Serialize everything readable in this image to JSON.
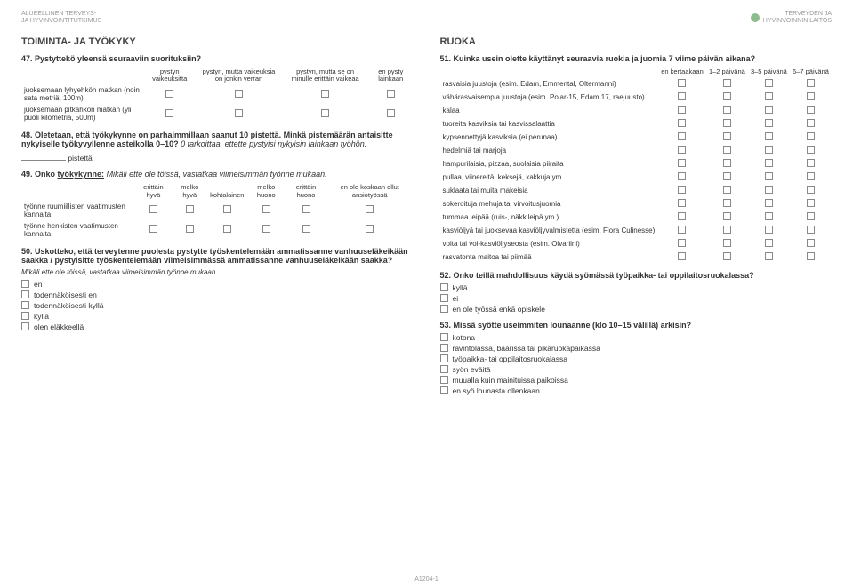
{
  "header": {
    "left_line1": "ALUEELLINEN TERVEYS-",
    "left_line2": "JA HYVINVOINTITUTKIMUS",
    "right_line1": "TERVEYDEN JA",
    "right_line2": "HYVINVOINNIN LAITOS"
  },
  "left": {
    "section_title": "TOIMINTA- JA TYÖKYKY",
    "q47": {
      "text": "47. Pystyttekö yleensä seuraaviin suorituksiin?",
      "cols": [
        "pystyn vaikeuksitta",
        "pystyn, mutta vaikeuksia on jonkin verran",
        "pystyn, mutta se on minulle erittäin vaikeaa",
        "en pysty lainkaan"
      ],
      "rows": [
        "juoksemaan lyhyehkön matkan (noin sata metriä, 100m)",
        "juoksemaan pitkähkön matkan (yli puoli kilometriä, 500m)"
      ]
    },
    "q48": {
      "text": "48. Oletetaan, että työkykynne on parhaimmillaan saanut 10 pistettä. Minkä pistemäärän antaisitte nykyiselle työkyvyllenne asteikolla 0–10?",
      "italic": "0 tarkoittaa, ettette pystyisi nykyisin lainkaan työhön.",
      "points_label": "pistettä"
    },
    "q49": {
      "text": "49. Onko ",
      "underline": "työkykynne:",
      "italic": "Mikäli ette ole töissä, vastatkaa viimeisimmän työnne mukaan.",
      "cols": [
        "erittäin hyvä",
        "melko hyvä",
        "kohtalainen",
        "melko huono",
        "erittäin huono",
        "en ole koskaan ollut ansiotyössä"
      ],
      "rows": [
        "työnne ruumiillisten vaatimusten kannalta",
        "työnne henkisten vaatimusten kannalta"
      ]
    },
    "q50": {
      "text": "50. Uskotteko, että terveytenne puolesta pystytte työskentelemään ammatissanne vanhuuseläkeikään saakka / pystyisitte työskentelemään viimeisimmässä ammatissanne vanhuuseläkeikään saakka?",
      "italic": "Mikäli ette ole töissä, vastatkaa viimeisimmän työnne mukaan.",
      "opts": [
        "en",
        "todennäköisesti en",
        "todennäköisesti kyllä",
        "kyllä",
        "olen eläkkeellä"
      ]
    }
  },
  "right": {
    "section_title": "RUOKA",
    "q51": {
      "text": "51. Kuinka usein olette käyttänyt seuraavia ruokia ja juomia 7 viime päivän aikana?",
      "cols": [
        "en kertaakaan",
        "1–2 päivänä",
        "3–5 päivänä",
        "6–7 päivänä"
      ],
      "rows": [
        "rasvaisia juustoja (esim. Edam, Emmental, Oltermanni)",
        "vähärasvaisempia juustoja (esim. Polar-15, Edam 17, raejuusto)",
        "kalaa",
        "tuoreita kasviksia tai kasvissalaattia",
        "kypsennettyjä kasviksia (ei perunaa)",
        "hedelmiä tai marjoja",
        "hampurilaisia, pizzaa, suolaisia piiraita",
        "pullaa, viinereitä, keksejä, kakkuja ym.",
        "suklaata tai muita makeisia",
        "sokeroituja mehuja tai virvoitusjuomia",
        "tummaa leipää (ruis-, näkkileipä ym.)",
        "kasviöljyä tai juoksevaa kasviöljyvalmistetta (esim. Flora Culinesse)",
        "voita tai voi-kasviöljyseosta (esim. Oivariini)",
        "rasvatonta maitoa tai piimää"
      ]
    },
    "q52": {
      "text": "52. Onko teillä mahdollisuus käydä syömässä työpaikka- tai oppilaitosruokalassa?",
      "opts": [
        "kyllä",
        "ei",
        "en ole työssä enkä opiskele"
      ]
    },
    "q53": {
      "text": "53. Missä syötte useimmiten lounaanne (klo 10–15 välillä) arkisin?",
      "opts": [
        "kotona",
        "ravintolassa, baarissa tai pikaruokapaikassa",
        "työpaikka- tai oppilaitosruokalassa",
        "syön eväitä",
        "muualla kuin mainituissa paikoissa",
        "en syö lounasta ollenkaan"
      ]
    }
  },
  "footer": "A1204-1"
}
